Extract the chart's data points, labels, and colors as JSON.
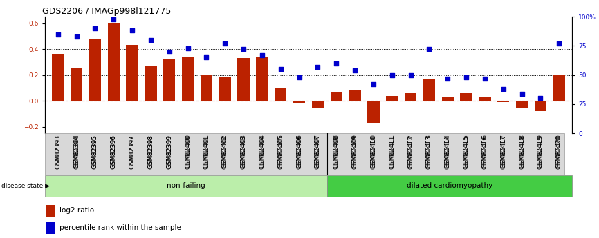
{
  "title": "GDS2206 / IMAGp998l121775",
  "samples": [
    "GSM82393",
    "GSM82394",
    "GSM82395",
    "GSM82396",
    "GSM82397",
    "GSM82398",
    "GSM82399",
    "GSM82400",
    "GSM82401",
    "GSM82402",
    "GSM82403",
    "GSM82404",
    "GSM82405",
    "GSM82406",
    "GSM82407",
    "GSM82408",
    "GSM82409",
    "GSM82410",
    "GSM82411",
    "GSM82412",
    "GSM82413",
    "GSM82414",
    "GSM82415",
    "GSM82416",
    "GSM82417",
    "GSM82418",
    "GSM82419",
    "GSM82420"
  ],
  "log2_ratio": [
    0.36,
    0.25,
    0.48,
    0.6,
    0.43,
    0.27,
    0.32,
    0.34,
    0.2,
    0.19,
    0.33,
    0.34,
    0.1,
    -0.02,
    -0.05,
    0.07,
    0.08,
    -0.17,
    0.04,
    0.06,
    0.17,
    0.03,
    0.06,
    0.03,
    -0.01,
    -0.05,
    -0.08,
    0.2
  ],
  "percentile": [
    85,
    83,
    90,
    98,
    88,
    80,
    70,
    73,
    65,
    77,
    72,
    67,
    55,
    48,
    57,
    60,
    54,
    42,
    50,
    50,
    72,
    47,
    48,
    47,
    38,
    34,
    30,
    77
  ],
  "non_failing_count": 15,
  "bar_color": "#bb2200",
  "dot_color": "#0000cc",
  "nonfailing_color": "#bbeeaa",
  "dcm_color": "#44cc44",
  "ylim_left": [
    -0.25,
    0.65
  ],
  "yticks_left": [
    -0.2,
    0.0,
    0.2,
    0.4,
    0.6
  ],
  "yticks_right": [
    0,
    25,
    50,
    75,
    100
  ],
  "ytick_right_labels": [
    "0",
    "25",
    "50",
    "75",
    "100%"
  ],
  "hline_vals": [
    0.2,
    0.4
  ],
  "title_fontsize": 9,
  "tick_fontsize": 6.5,
  "label_fontsize": 7.5,
  "legend_fontsize": 7.5
}
